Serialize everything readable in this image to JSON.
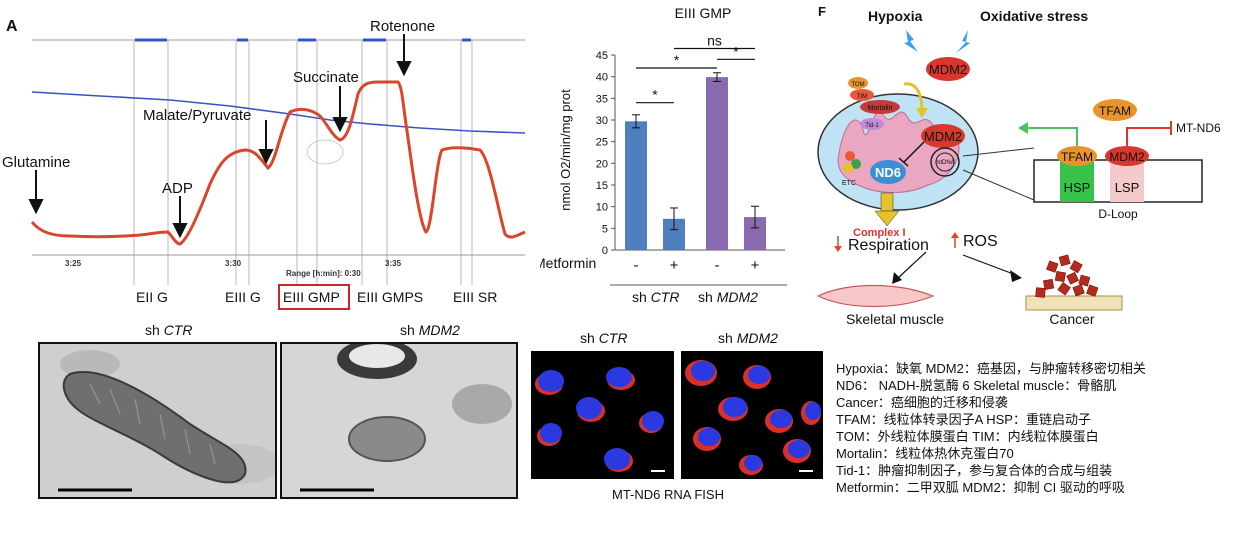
{
  "panel_a": {
    "letter": "A",
    "annotations": {
      "glutamine": "Glutamine",
      "adp": "ADP",
      "malate_pyruvate": "Malate/Pyruvate",
      "succinate": "Succinate",
      "rotenone": "Rotenone"
    },
    "time_ticks": [
      "3:25",
      "3:30",
      "3:35"
    ],
    "range_label": "Range [h:min]: 0:30",
    "states": [
      "EII G",
      "EIII G",
      "EIII GMP",
      "EIII GMPS",
      "EIII SR"
    ],
    "highlighted_state": "EIII GMP",
    "line_colors": {
      "o2_flux": "#d9472b",
      "o2_conc": "#3b53c4"
    }
  },
  "chart_data": {
    "type": "bar",
    "title": "EIII GMP",
    "ylabel": "nmol O2/min/mg prot",
    "ylim": [
      0,
      45
    ],
    "yticks": [
      0,
      5,
      10,
      15,
      20,
      25,
      30,
      35,
      40,
      45
    ],
    "row_label": "Metformin",
    "categories": [
      "-",
      "+",
      "-",
      "+"
    ],
    "groups": [
      {
        "label": "sh",
        "italic": "CTR"
      },
      {
        "label": "sh",
        "italic": "MDM2"
      }
    ],
    "values": [
      29.7,
      7.2,
      39.9,
      7.6
    ],
    "errors": [
      1.5,
      2.5,
      1.0,
      2.5
    ],
    "bar_colors": [
      "#4f7fbf",
      "#4f7fbf",
      "#8a6bb0",
      "#8a6bb0"
    ],
    "significance": [
      "*",
      "*",
      "*",
      "ns"
    ]
  },
  "em_panels": [
    {
      "label": "sh",
      "italic": "CTR"
    },
    {
      "label": "sh",
      "italic": "MDM2"
    }
  ],
  "fish": {
    "panels": [
      {
        "label": "sh",
        "italic": "CTR"
      },
      {
        "label": "sh",
        "italic": "MDM2"
      }
    ],
    "caption": "MT-ND6 RNA FISH"
  },
  "panel_f": {
    "letter": "F",
    "hypoxia": "Hypoxia",
    "oxidative_stress": "Oxidative stress",
    "mdm2": "MDM2",
    "tom": "TOM",
    "tim": "TIM",
    "mortalin": "Mortalin",
    "tid1": "Tid-1",
    "mtdna": "mtDNA",
    "nd6": "ND6",
    "etc": "ETC",
    "tfam": "TFAM",
    "mt_nd6": "MT-ND6",
    "hsp": "HSP",
    "lsp": "LSP",
    "dloop": "D-Loop",
    "complex_i": "Complex I",
    "respiration": "Respiration",
    "ros": "ROS",
    "skeletal_muscle": "Skeletal muscle",
    "cancer": "Cancer"
  },
  "legend": [
    "Hypoxia：缺氧   MDM2：癌基因，与肿瘤转移密切相关",
    "ND6： NADH-脱氢酶 6       Skeletal muscle：骨骼肌",
    "Cancer：癌细胞的迁移和侵袭",
    "TFAM：线粒体转录因子A     HSP：重链启动子",
    "TOM：外线粒体膜蛋白    TIM：内线粒体膜蛋白",
    "Mortalin：线粒体热休克蛋白70",
    "Tid-1：肿瘤抑制因子，参与复合体的合成与组装",
    "Metformin：二甲双胍    MDM2：抑制 CI 驱动的呼吸"
  ]
}
